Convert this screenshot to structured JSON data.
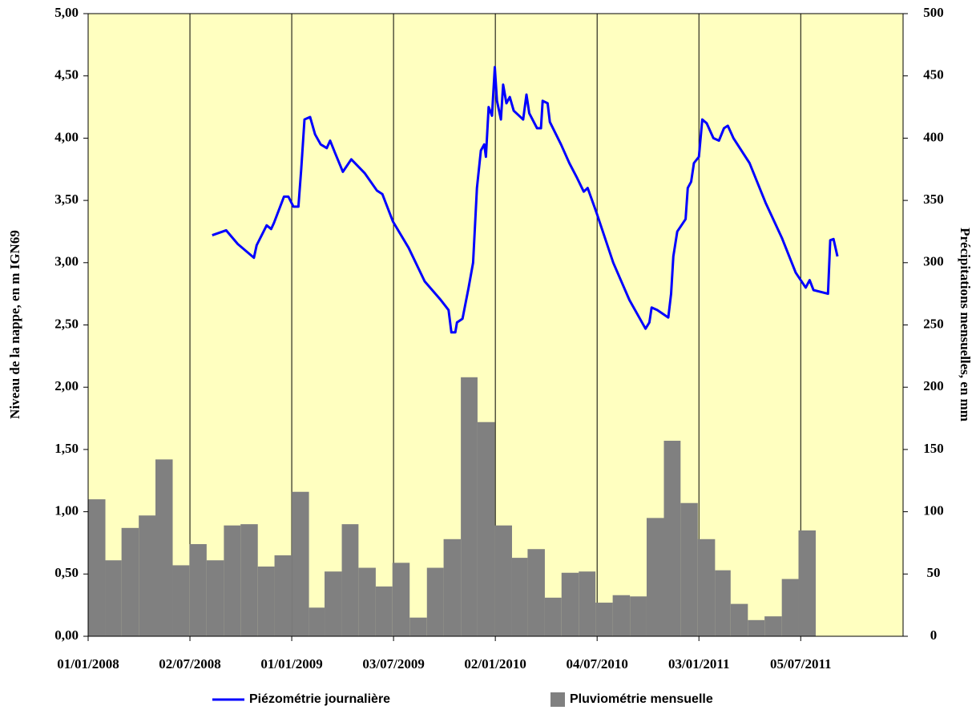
{
  "chart_data": {
    "type": "bar_line_dual_axis",
    "y_label": "Niveau de la nappe, en m IGN69",
    "y2_label": "Précipitations mensuelles, en mm",
    "xlim": [
      "2008-01-01",
      "2012-01-05"
    ],
    "xticks": [
      {
        "value": "2008-01-01",
        "label": "01/01/2008"
      },
      {
        "value": "2008-07-02",
        "label": "02/07/2008"
      },
      {
        "value": "2009-01-01",
        "label": "01/01/2009"
      },
      {
        "value": "2009-07-03",
        "label": "03/07/2009"
      },
      {
        "value": "2010-01-02",
        "label": "02/01/2010"
      },
      {
        "value": "2010-07-04",
        "label": "04/07/2010"
      },
      {
        "value": "2011-01-03",
        "label": "03/01/2011"
      },
      {
        "value": "2011-07-05",
        "label": "05/07/2011"
      }
    ],
    "ylim": [
      0,
      5
    ],
    "yticks": [
      {
        "value": 0,
        "label": "0,00"
      },
      {
        "value": 0.5,
        "label": "0,50"
      },
      {
        "value": 1,
        "label": "1,00"
      },
      {
        "value": 1.5,
        "label": "1,50"
      },
      {
        "value": 2,
        "label": "2,00"
      },
      {
        "value": 2.5,
        "label": "2,50"
      },
      {
        "value": 3,
        "label": "3,00"
      },
      {
        "value": 3.5,
        "label": "3,50"
      },
      {
        "value": 4,
        "label": "4,00"
      },
      {
        "value": 4.5,
        "label": "4,50"
      },
      {
        "value": 5,
        "label": "5,00"
      }
    ],
    "y2lim": [
      0,
      500
    ],
    "y2ticks": [
      0,
      50,
      100,
      150,
      200,
      250,
      300,
      350,
      400,
      450,
      500
    ],
    "grid": "x",
    "legend": "bottom",
    "series": [
      {
        "name": "Piézométrie journalière",
        "type": "line",
        "color": "#0000ff",
        "x": [
          "2008-08-11",
          "2008-09-05",
          "2008-09-26",
          "2008-10-25",
          "2008-10-30",
          "2008-11-17",
          "2008-11-25",
          "2008-11-30",
          "2008-12-18",
          "2008-12-26",
          "2009-01-04",
          "2009-01-13",
          "2009-01-18",
          "2009-01-24",
          "2009-02-03",
          "2009-02-12",
          "2009-02-22",
          "2009-03-05",
          "2009-03-11",
          "2009-03-20",
          "2009-04-03",
          "2009-04-18",
          "2009-05-12",
          "2009-06-03",
          "2009-06-13",
          "2009-07-02",
          "2009-07-30",
          "2009-08-28",
          "2009-09-26",
          "2009-10-10",
          "2009-10-15",
          "2009-10-22",
          "2009-10-25",
          "2009-11-04",
          "2009-11-15",
          "2009-11-23",
          "2009-11-30",
          "2009-12-07",
          "2009-12-13",
          "2009-12-16",
          "2009-12-21",
          "2009-12-27",
          "2010-01-01",
          "2010-01-05",
          "2010-01-12",
          "2010-01-16",
          "2010-01-22",
          "2010-01-28",
          "2010-02-04",
          "2010-02-21",
          "2010-02-27",
          "2010-03-04",
          "2010-03-18",
          "2010-03-25",
          "2010-03-28",
          "2010-04-06",
          "2010-04-10",
          "2010-04-30",
          "2010-05-15",
          "2010-05-29",
          "2010-06-10",
          "2010-06-17",
          "2010-07-03",
          "2010-08-02",
          "2010-08-31",
          "2010-09-29",
          "2010-10-06",
          "2010-10-10",
          "2010-10-20",
          "2010-11-09",
          "2010-11-14",
          "2010-11-18",
          "2010-11-25",
          "2010-12-10",
          "2010-12-14",
          "2010-12-20",
          "2010-12-25",
          "2011-01-03",
          "2011-01-09",
          "2011-01-17",
          "2011-01-29",
          "2011-02-08",
          "2011-02-17",
          "2011-02-24",
          "2011-03-06",
          "2011-04-04",
          "2011-05-03",
          "2011-06-01",
          "2011-06-26",
          "2011-07-14",
          "2011-07-21",
          "2011-07-28",
          "2011-08-23",
          "2011-08-27",
          "2011-09-02",
          "2011-09-09"
        ],
        "values": [
          3.22,
          3.26,
          3.15,
          3.04,
          3.14,
          3.3,
          3.27,
          3.32,
          3.53,
          3.53,
          3.45,
          3.45,
          3.75,
          4.15,
          4.17,
          4.03,
          3.95,
          3.92,
          3.98,
          3.88,
          3.73,
          3.83,
          3.72,
          3.58,
          3.55,
          3.33,
          3.12,
          2.85,
          2.7,
          2.62,
          2.44,
          2.44,
          2.52,
          2.55,
          2.8,
          3.0,
          3.6,
          3.9,
          3.95,
          3.85,
          4.25,
          4.18,
          4.57,
          4.3,
          4.15,
          4.43,
          4.28,
          4.33,
          4.22,
          4.15,
          4.35,
          4.2,
          4.08,
          4.08,
          4.3,
          4.28,
          4.13,
          3.95,
          3.8,
          3.68,
          3.57,
          3.6,
          3.4,
          3.0,
          2.7,
          2.47,
          2.52,
          2.64,
          2.62,
          2.56,
          2.75,
          3.05,
          3.25,
          3.35,
          3.6,
          3.65,
          3.8,
          3.85,
          4.15,
          4.12,
          4.0,
          3.98,
          4.08,
          4.1,
          4.0,
          3.8,
          3.48,
          3.2,
          2.92,
          2.8,
          2.86,
          2.78,
          2.75,
          3.18,
          3.19,
          3.05
        ]
      },
      {
        "name": "Pluviométrie mensuelle",
        "type": "bar",
        "axis": "y2",
        "color": "#808080",
        "x": [
          "2008-01-01",
          "2008-02-01",
          "2008-03-01",
          "2008-04-01",
          "2008-05-01",
          "2008-06-01",
          "2008-07-01",
          "2008-08-01",
          "2008-09-01",
          "2008-10-01",
          "2008-11-01",
          "2008-12-01",
          "2009-01-01",
          "2009-02-01",
          "2009-03-01",
          "2009-04-01",
          "2009-05-01",
          "2009-06-01",
          "2009-07-01",
          "2009-08-01",
          "2009-09-01",
          "2009-10-01",
          "2009-11-01",
          "2009-12-01",
          "2010-01-01",
          "2010-02-01",
          "2010-03-01",
          "2010-04-01",
          "2010-05-01",
          "2010-06-01",
          "2010-07-01",
          "2010-08-01",
          "2010-09-01",
          "2010-10-01",
          "2010-11-01",
          "2010-12-01",
          "2011-01-01",
          "2011-02-01",
          "2011-03-01",
          "2011-04-01",
          "2011-05-01",
          "2011-06-01",
          "2011-07-01"
        ],
        "values": [
          110,
          61,
          87,
          97,
          142,
          57,
          74,
          61,
          89,
          90,
          56,
          65,
          116,
          23,
          52,
          90,
          55,
          40,
          59,
          15,
          55,
          78,
          208,
          172,
          89,
          63,
          70,
          31,
          51,
          52,
          27,
          33,
          32,
          95,
          157,
          107,
          78,
          53,
          26,
          13,
          16,
          46,
          85
        ]
      }
    ]
  }
}
